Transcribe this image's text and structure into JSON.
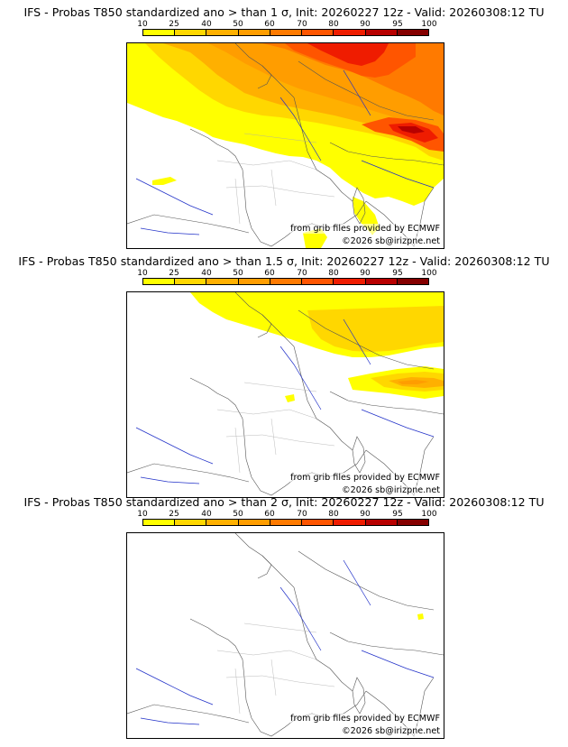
{
  "scale": {
    "labels": [
      "10",
      "25",
      "40",
      "50",
      "60",
      "70",
      "80",
      "90",
      "95",
      "100"
    ],
    "colors": [
      "#ffff00",
      "#ffd700",
      "#ffb000",
      "#ff9d00",
      "#ff7a00",
      "#ff5500",
      "#ef1c00",
      "#b80000",
      "#850000",
      "#5a0000"
    ]
  },
  "credits": {
    "source": "from grib files provided by ECMWF",
    "copyright": "©2026 sb@irizpne.net"
  },
  "panels": [
    {
      "title": "IFS - Probas T850  standardized ano > than 1 σ, Init: 20260227 12z - Valid: 20260308:12 TU",
      "threshold_sigma": 1
    },
    {
      "title": "IFS - Probas T850  standardized ano > than 1.5 σ, Init: 20260227 12z - Valid: 20260308:12 TU",
      "threshold_sigma": 1.5
    },
    {
      "title": "IFS - Probas T850  standardized ano > than 2 σ, Init: 20260227 12z - Valid: 20260308:12 TU",
      "threshold_sigma": 2
    }
  ]
}
